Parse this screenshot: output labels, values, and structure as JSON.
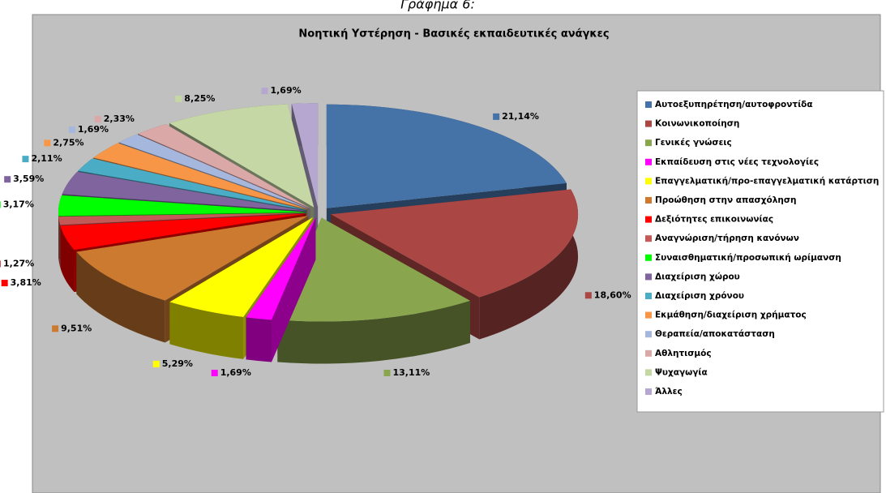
{
  "caption": "Γράφημα 6:",
  "chart_data": {
    "type": "pie3d",
    "title": "Νοητική Υστέρηση - Βασικές εκπαιδευτικές ανάγκες",
    "categories": [
      "Αυτοεξυπηρέτηση/αυτοφροντίδα",
      "Κοινωνικοποίηση",
      "Γενικές γνώσεις",
      "Εκπαίδευση στις νέες τεχνολογίες",
      "Επαγγελματική/προ-επαγγελματική κατάρτιση",
      "Προώθηση στην απασχόληση",
      "Δεξιότητες επικοινωνίας",
      "Αναγνώριση/τήρηση κανόνων",
      "Συναισθηματική/προσωπική ωρίμανση",
      "Διαχείριση χώρου",
      "Διαχείριση χρόνου",
      "Εκμάθηση/διαχείριση χρήματος",
      "Θεραπεία/αποκατάσταση",
      "Αθλητισμός",
      "Ψυχαγωγία",
      "Άλλες"
    ],
    "values": [
      21.14,
      18.6,
      13.11,
      1.69,
      5.29,
      9.51,
      3.81,
      1.27,
      3.17,
      3.59,
      2.11,
      2.75,
      1.69,
      2.33,
      8.25,
      1.69
    ],
    "value_labels": [
      "21,14%",
      "18,60%",
      "13,11%",
      "1,69%",
      "5,29%",
      "9,51%",
      "3,81%",
      "1,27%",
      "3,17%",
      "3,59%",
      "2,11%",
      "2,75%",
      "1,69%",
      "2,33%",
      "8,25%",
      "1,69%"
    ],
    "colors": [
      "#4572a7",
      "#aa4643",
      "#89a54e",
      "#ff00ff",
      "#ffff00",
      "#cc7a30",
      "#ff0000",
      "#c45a58",
      "#00ff00",
      "#80649e",
      "#4bacc6",
      "#f79646",
      "#a5b7dc",
      "#dba8a8",
      "#c4d7a4",
      "#b6a7d0"
    ],
    "legend": "right"
  }
}
